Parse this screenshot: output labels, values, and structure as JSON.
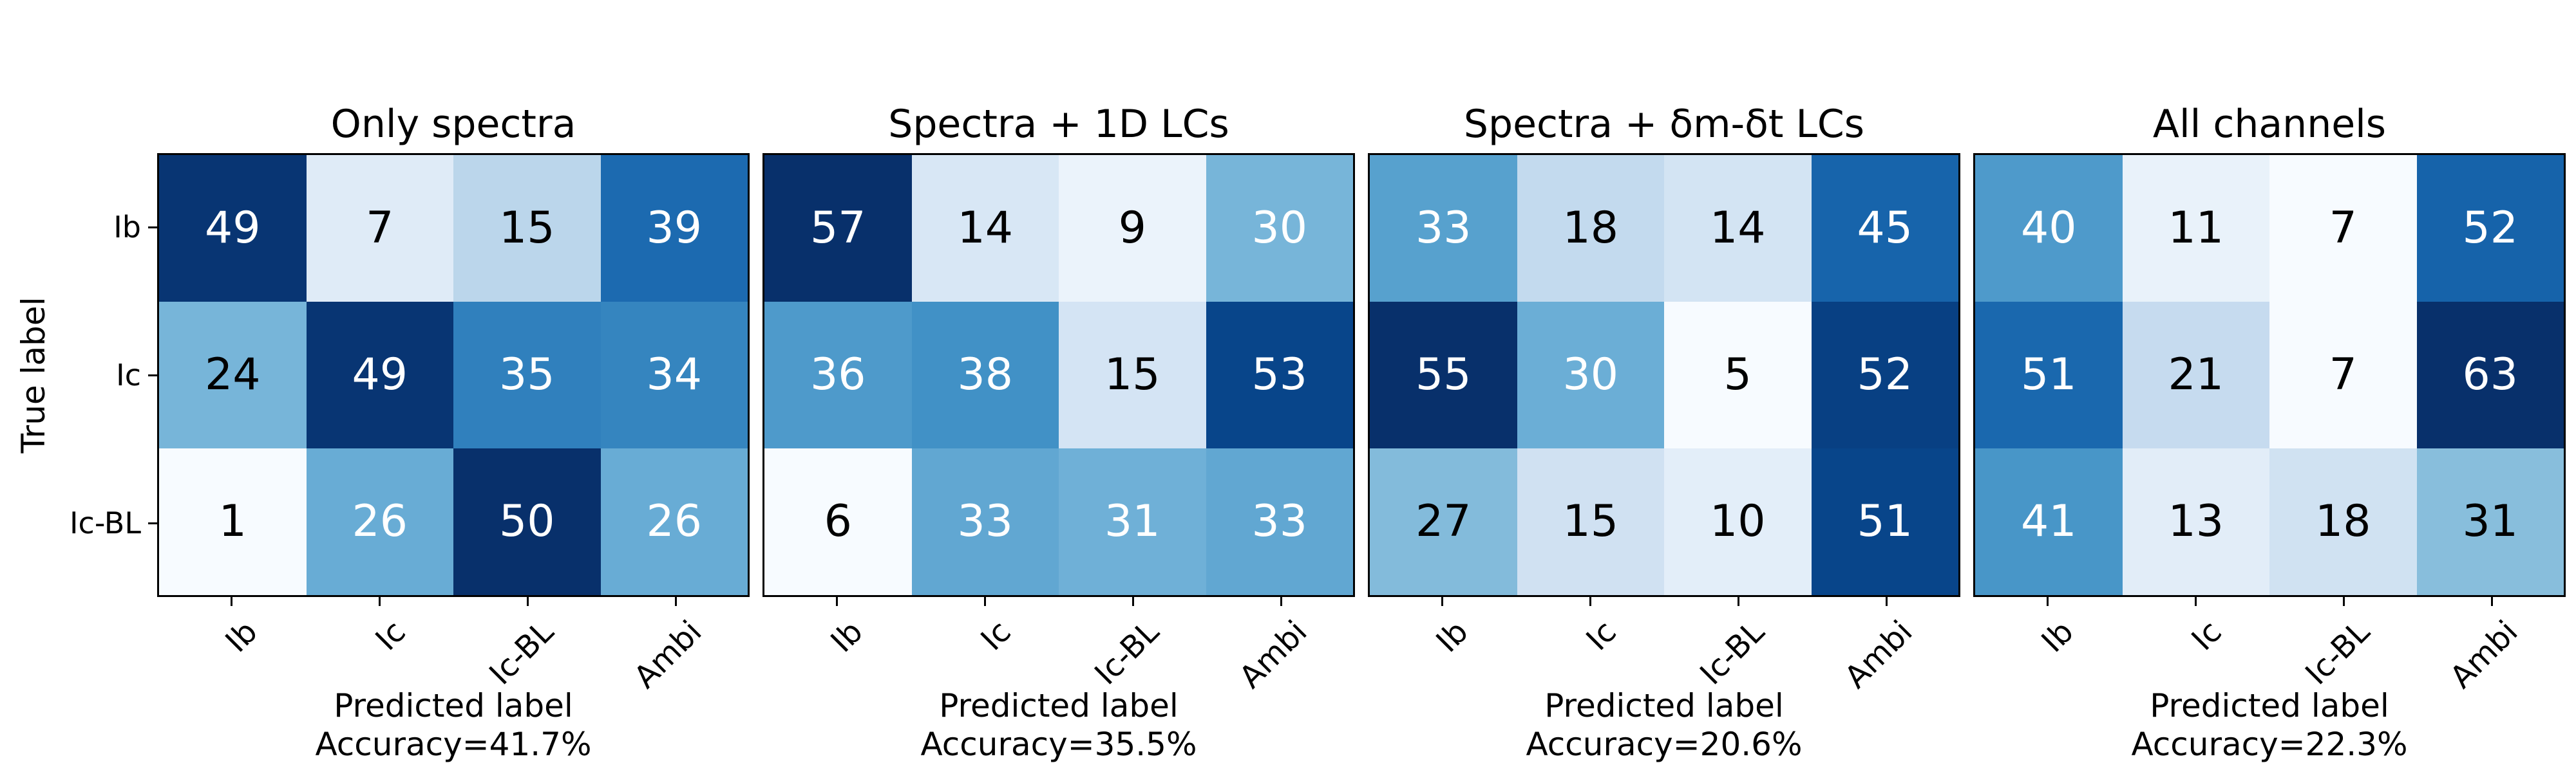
{
  "figure": {
    "background": "#ffffff",
    "ylabel": "True label",
    "spine_color": "#000000",
    "colormap": {
      "name": "Blues",
      "stops": [
        "#f7fbff",
        "#deebf7",
        "#c6dbef",
        "#9ecae1",
        "#6baed6",
        "#4292c6",
        "#2171b5",
        "#08519c",
        "#08306b"
      ]
    },
    "text_colors": {
      "light": "#ffffff",
      "dark": "#000000"
    }
  },
  "chart_data": [
    {
      "type": "heatmap",
      "title": "Only spectra",
      "xlabel": "Predicted label",
      "accuracy_label": "Accuracy=41.7%",
      "rows": [
        "Ib",
        "Ic",
        "Ic-BL"
      ],
      "cols": [
        "Ib",
        "Ic",
        "Ic-BL",
        "Ambi"
      ],
      "matrix": [
        [
          49,
          7,
          15,
          39
        ],
        [
          24,
          49,
          35,
          34
        ],
        [
          1,
          26,
          50,
          26
        ]
      ],
      "normalization": "min-max per matrix",
      "grid": false,
      "legend": "none"
    },
    {
      "type": "heatmap",
      "title": "Spectra + 1D LCs",
      "xlabel": "Predicted label",
      "accuracy_label": "Accuracy=35.5%",
      "rows": [
        "Ib",
        "Ic",
        "Ic-BL"
      ],
      "cols": [
        "Ib",
        "Ic",
        "Ic-BL",
        "Ambi"
      ],
      "matrix": [
        [
          57,
          14,
          9,
          30
        ],
        [
          36,
          38,
          15,
          53
        ],
        [
          6,
          33,
          31,
          33
        ]
      ],
      "normalization": "min-max per matrix",
      "grid": false,
      "legend": "none"
    },
    {
      "type": "heatmap",
      "title": "Spectra + δm-δt LCs",
      "xlabel": "Predicted label",
      "accuracy_label": "Accuracy=20.6%",
      "rows": [
        "Ib",
        "Ic",
        "Ic-BL"
      ],
      "cols": [
        "Ib",
        "Ic",
        "Ic-BL",
        "Ambi"
      ],
      "matrix": [
        [
          33,
          18,
          14,
          45
        ],
        [
          55,
          30,
          5,
          52
        ],
        [
          27,
          15,
          10,
          51
        ]
      ],
      "normalization": "min-max per matrix",
      "grid": false,
      "legend": "none"
    },
    {
      "type": "heatmap",
      "title": "All channels",
      "xlabel": "Predicted label",
      "accuracy_label": "Accuracy=22.3%",
      "rows": [
        "Ib",
        "Ic",
        "Ic-BL"
      ],
      "cols": [
        "Ib",
        "Ic",
        "Ic-BL",
        "Ambi"
      ],
      "matrix": [
        [
          40,
          11,
          7,
          52
        ],
        [
          51,
          21,
          7,
          63
        ],
        [
          41,
          13,
          18,
          31
        ]
      ],
      "normalization": "min-max per matrix",
      "grid": false,
      "legend": "none"
    }
  ]
}
